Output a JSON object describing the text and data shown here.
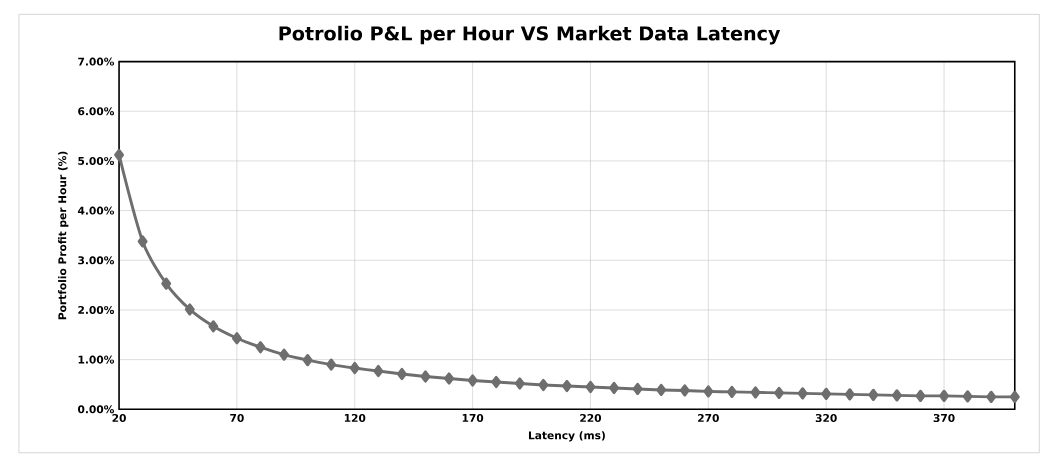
{
  "chart_data": {
    "type": "line",
    "title": "Potrolio P&L per Hour VS Market Data Latency",
    "xlabel": "Latency (ms)",
    "ylabel": "Portfolio Profit per Hour (%)",
    "x": [
      20,
      30,
      40,
      50,
      60,
      70,
      80,
      90,
      100,
      110,
      120,
      130,
      140,
      150,
      160,
      170,
      180,
      190,
      200,
      210,
      220,
      230,
      240,
      250,
      260,
      270,
      280,
      290,
      300,
      310,
      320,
      330,
      340,
      350,
      360,
      370,
      380,
      390,
      400
    ],
    "series": [
      {
        "color": "#6e6e6e",
        "values": [
          5.12,
          3.38,
          2.53,
          2.01,
          1.67,
          1.43,
          1.25,
          1.1,
          0.99,
          0.9,
          0.83,
          0.77,
          0.71,
          0.66,
          0.62,
          0.58,
          0.55,
          0.52,
          0.49,
          0.47,
          0.45,
          0.43,
          0.41,
          0.39,
          0.38,
          0.36,
          0.35,
          0.34,
          0.33,
          0.32,
          0.31,
          0.3,
          0.29,
          0.28,
          0.27,
          0.27,
          0.26,
          0.25,
          0.25
        ]
      }
    ],
    "xlim": [
      20,
      400
    ],
    "xticks": [
      20,
      70,
      120,
      170,
      220,
      270,
      320,
      370
    ],
    "ylim": [
      0,
      7
    ],
    "yticks": [
      {
        "value": 0,
        "label": "0.00%"
      },
      {
        "value": 1,
        "label": "1.00%"
      },
      {
        "value": 2,
        "label": "2.00%"
      },
      {
        "value": 3,
        "label": "3.00%"
      },
      {
        "value": 4,
        "label": "4.00%"
      },
      {
        "value": 5,
        "label": "5.00%"
      },
      {
        "value": 6,
        "label": "6.00%"
      },
      {
        "value": 7,
        "label": "7.00%"
      }
    ],
    "grid": true,
    "marker": "diamond",
    "line_style": "solid"
  }
}
